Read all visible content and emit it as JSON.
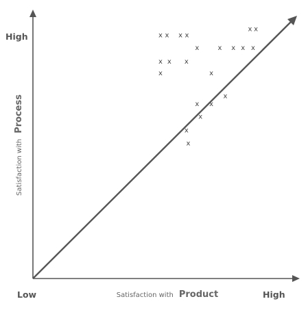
{
  "chart_data": {
    "type": "scatter",
    "title": "",
    "xlabel": "Satisfaction with Product",
    "xlabel_prefix": "Satisfaction with",
    "xlabel_emphasis": "Product",
    "ylabel": "Satisfaction with Process",
    "ylabel_prefix": "Satisfaction with",
    "ylabel_emphasis": "Process",
    "x_low_label": "Low",
    "x_high_label": "High",
    "y_high_label": "High",
    "xlim": [
      0,
      10
    ],
    "ylim": [
      0,
      10
    ],
    "marker": "x",
    "grid": false,
    "reference_line": "diagonal y = x",
    "points": [
      {
        "x": 4.92,
        "y": 9.76
      },
      {
        "x": 5.17,
        "y": 9.76
      },
      {
        "x": 5.69,
        "y": 9.76
      },
      {
        "x": 5.94,
        "y": 9.76
      },
      {
        "x": 6.33,
        "y": 9.25
      },
      {
        "x": 7.21,
        "y": 9.25
      },
      {
        "x": 7.73,
        "y": 9.25
      },
      {
        "x": 8.1,
        "y": 9.25
      },
      {
        "x": 8.49,
        "y": 9.25
      },
      {
        "x": 8.37,
        "y": 10.0
      },
      {
        "x": 8.6,
        "y": 10.0
      },
      {
        "x": 4.92,
        "y": 8.7
      },
      {
        "x": 5.26,
        "y": 8.7
      },
      {
        "x": 5.92,
        "y": 8.7
      },
      {
        "x": 4.92,
        "y": 8.23
      },
      {
        "x": 6.88,
        "y": 8.23
      },
      {
        "x": 7.42,
        "y": 7.31
      },
      {
        "x": 6.33,
        "y": 7.0
      },
      {
        "x": 6.88,
        "y": 7.0
      },
      {
        "x": 6.46,
        "y": 6.5
      },
      {
        "x": 5.92,
        "y": 5.95
      },
      {
        "x": 5.99,
        "y": 5.43
      }
    ]
  }
}
